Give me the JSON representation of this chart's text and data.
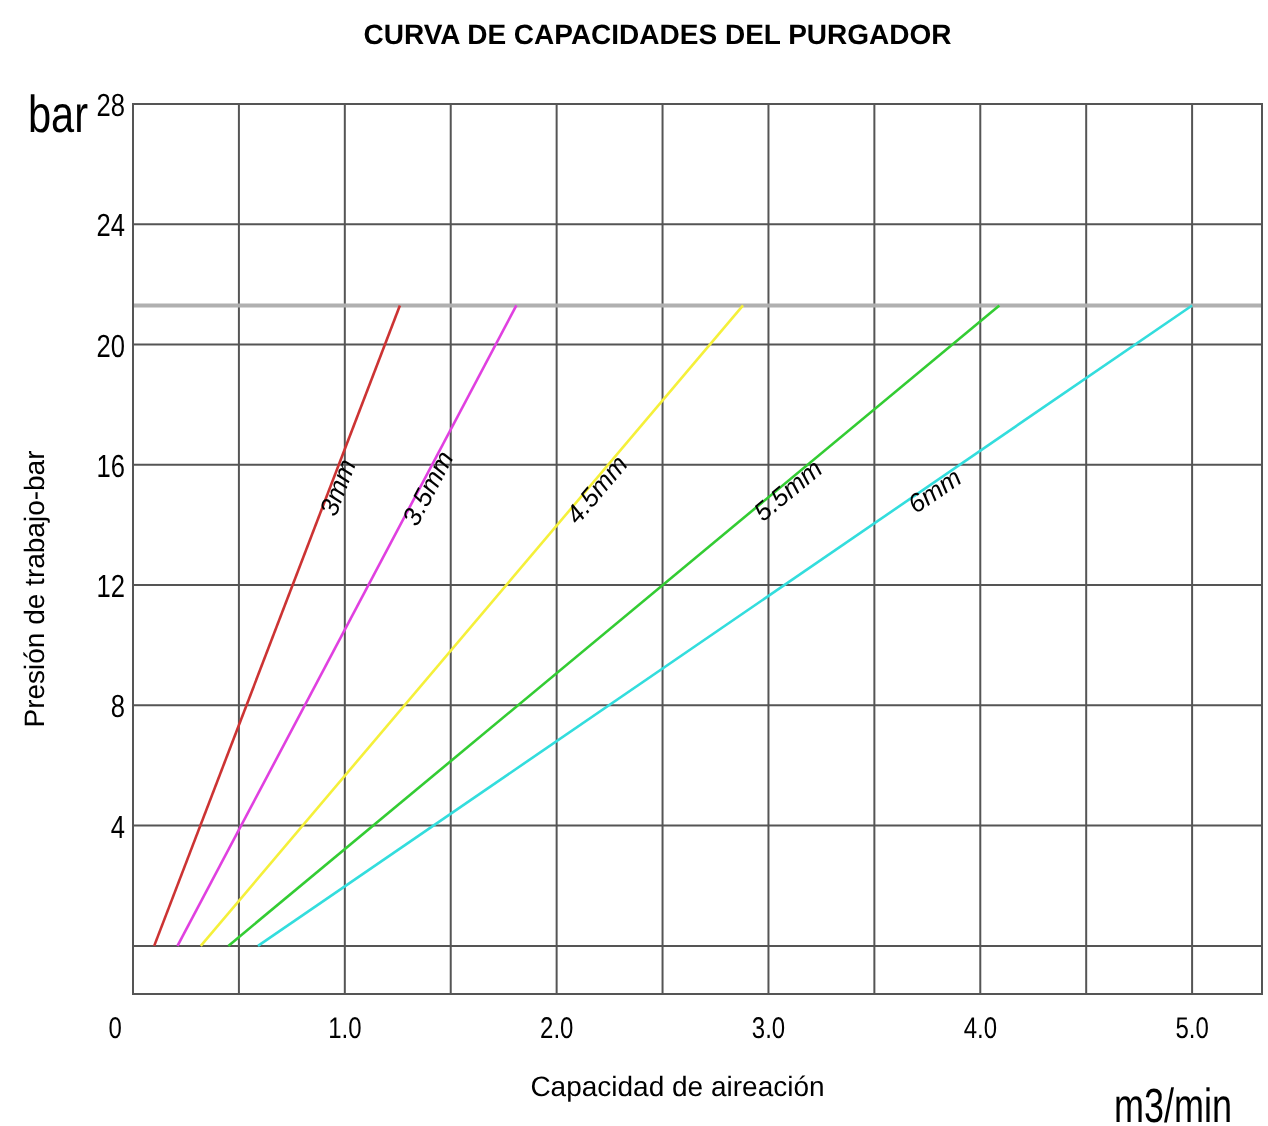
{
  "chart_data": {
    "type": "line",
    "title": "CURVA DE CAPACIDADES DEL PURGADOR",
    "xlabel": "Capacidad de aireación",
    "ylabel": "Presión de trabajo-bar",
    "annotations": [
      "bar",
      "m3/min"
    ],
    "xlim": [
      0,
      5.33
    ],
    "ylim": [
      -1.6,
      28
    ],
    "xticks": [
      {
        "value": 0,
        "label": "0"
      },
      {
        "value": 0.5,
        "label": null
      },
      {
        "value": 1,
        "label": "1.0"
      },
      {
        "value": 1.5,
        "label": null
      },
      {
        "value": 2,
        "label": "2.0"
      },
      {
        "value": 2.5,
        "label": null
      },
      {
        "value": 3,
        "label": "3.0"
      },
      {
        "value": 3.5,
        "label": null
      },
      {
        "value": 4,
        "label": "4.0"
      },
      {
        "value": 4.5,
        "label": null
      },
      {
        "value": 5,
        "label": "5.0"
      }
    ],
    "yticks": [
      {
        "value": 0,
        "label": null
      },
      4,
      8,
      12,
      16,
      20,
      24,
      28
    ],
    "grid": true,
    "ref_lines": [
      {
        "axis": "y",
        "value": 21.3,
        "color": "#b0b0b0"
      }
    ],
    "series": [
      {
        "name": "3mm",
        "color": "#cc3333",
        "x": [
          0.1,
          1.26
        ],
        "values": [
          0,
          21.3
        ]
      },
      {
        "name": "3.5mm",
        "color": "#e040e0",
        "x": [
          0.21,
          1.81
        ],
        "values": [
          0,
          21.3
        ]
      },
      {
        "name": "4.5mm",
        "color": "#f5f03a",
        "x": [
          0.32,
          2.88
        ],
        "values": [
          0,
          21.3
        ]
      },
      {
        "name": "5.5mm",
        "color": "#33cc33",
        "x": [
          0.45,
          4.09
        ],
        "values": [
          0,
          21.3
        ]
      },
      {
        "name": "6mm",
        "color": "#33dddd",
        "x": [
          0.59,
          5.0
        ],
        "values": [
          0,
          21.3
        ]
      }
    ]
  }
}
